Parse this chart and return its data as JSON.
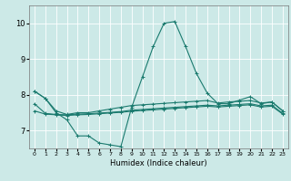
{
  "xlabel": "Humidex (Indice chaleur)",
  "xlim": [
    -0.5,
    23.5
  ],
  "ylim": [
    6.5,
    10.5
  ],
  "yticks": [
    7,
    8,
    9,
    10
  ],
  "xticks": [
    0,
    1,
    2,
    3,
    4,
    5,
    6,
    7,
    8,
    9,
    10,
    11,
    12,
    13,
    14,
    15,
    16,
    17,
    18,
    19,
    20,
    21,
    22,
    23
  ],
  "background_color": "#cce9e7",
  "grid_color": "#ffffff",
  "line_color": "#1a7a6e",
  "line1_y": [
    8.1,
    7.9,
    7.5,
    7.3,
    6.85,
    6.85,
    6.65,
    6.6,
    6.55,
    7.65,
    8.5,
    9.35,
    10.0,
    10.05,
    9.35,
    8.6,
    8.05,
    7.75,
    7.75,
    7.85,
    7.95,
    7.75,
    7.8,
    7.55
  ],
  "line2_y": [
    8.1,
    7.9,
    7.55,
    7.45,
    7.5,
    7.5,
    7.55,
    7.6,
    7.65,
    7.7,
    7.72,
    7.74,
    7.76,
    7.78,
    7.8,
    7.82,
    7.84,
    7.77,
    7.8,
    7.82,
    7.84,
    7.77,
    7.8,
    7.55
  ],
  "line3_y": [
    7.75,
    7.48,
    7.45,
    7.44,
    7.46,
    7.47,
    7.49,
    7.51,
    7.53,
    7.57,
    7.59,
    7.61,
    7.63,
    7.65,
    7.67,
    7.69,
    7.71,
    7.69,
    7.71,
    7.73,
    7.75,
    7.69,
    7.71,
    7.48
  ],
  "line4_y": [
    7.55,
    7.46,
    7.44,
    7.42,
    7.44,
    7.45,
    7.47,
    7.49,
    7.51,
    7.54,
    7.56,
    7.58,
    7.6,
    7.62,
    7.64,
    7.66,
    7.68,
    7.66,
    7.68,
    7.7,
    7.72,
    7.66,
    7.68,
    7.46
  ]
}
